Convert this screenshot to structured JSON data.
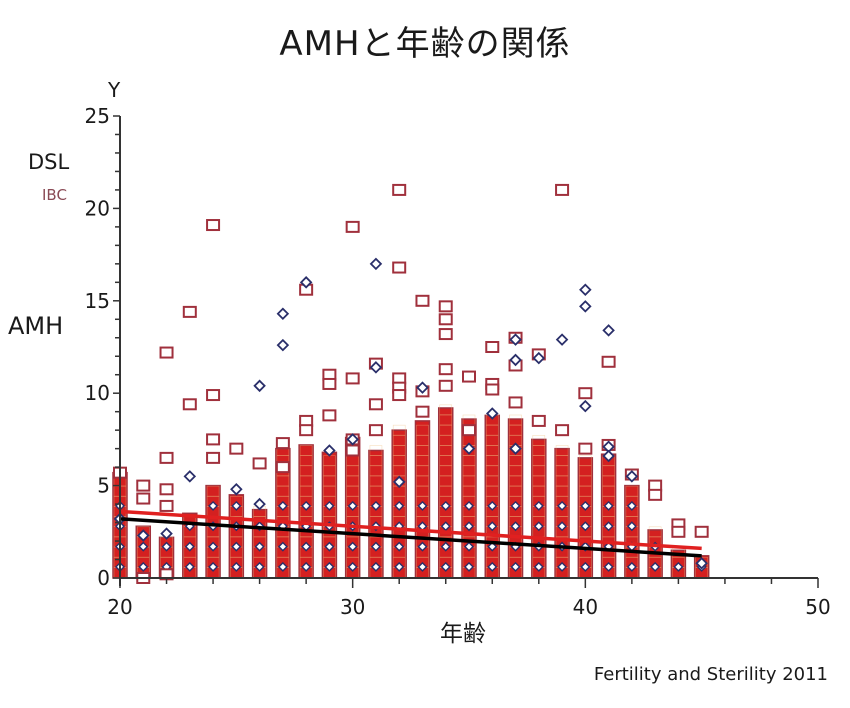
{
  "title": "AMHと年齢の関係",
  "y_axis_symbol": "Y",
  "legend": {
    "dsl": "DSL",
    "ibc": "IBC"
  },
  "ylabel": "AMH",
  "xlabel": "年齢",
  "source": "Fertility and Sterility 2011",
  "colors": {
    "ibc_marker": "#a0303c",
    "dsl_marker": "#2a2f6a",
    "ibc_fill": "#d42020",
    "dsl_line": "#000000",
    "ibc_line": "#e02020",
    "axis": "#333333"
  },
  "chart_data": {
    "type": "scatter",
    "title": "AMHと年齢の関係",
    "xlabel": "年齢",
    "ylabel": "AMH",
    "xlim": [
      20,
      50
    ],
    "ylim": [
      0,
      25
    ],
    "x_ticks": [
      20,
      30,
      40,
      50
    ],
    "y_ticks": [
      0,
      5,
      10,
      15,
      20,
      25
    ],
    "legend": [
      "DSL",
      "IBC"
    ],
    "legend_position": "upper-left",
    "grid": false,
    "series": [
      {
        "name": "IBC",
        "marker": "square",
        "points": [
          [
            20,
            5.7
          ],
          [
            21,
            5.0
          ],
          [
            21,
            4.3
          ],
          [
            22,
            12.2
          ],
          [
            22,
            6.5
          ],
          [
            22,
            4.8
          ],
          [
            22,
            3.9
          ],
          [
            22,
            0.2
          ],
          [
            21,
            0.0
          ],
          [
            23,
            9.4
          ],
          [
            23,
            14.4
          ],
          [
            24,
            19.1
          ],
          [
            24,
            9.9
          ],
          [
            24,
            7.5
          ],
          [
            24,
            6.5
          ],
          [
            25,
            7.0
          ],
          [
            26,
            6.2
          ],
          [
            27,
            7.3
          ],
          [
            27,
            6.0
          ],
          [
            28,
            8.5
          ],
          [
            28,
            8.0
          ],
          [
            28,
            15.6
          ],
          [
            29,
            11.0
          ],
          [
            29,
            10.5
          ],
          [
            29,
            8.8
          ],
          [
            30,
            19.0
          ],
          [
            30,
            10.8
          ],
          [
            30,
            7.5
          ],
          [
            30,
            6.9
          ],
          [
            31,
            11.6
          ],
          [
            31,
            9.4
          ],
          [
            31,
            8.0
          ],
          [
            32,
            21.0
          ],
          [
            32,
            16.8
          ],
          [
            32,
            10.8
          ],
          [
            32,
            10.3
          ],
          [
            32,
            9.9
          ],
          [
            33,
            15.0
          ],
          [
            33,
            10.1
          ],
          [
            33,
            9.0
          ],
          [
            34,
            14.7
          ],
          [
            34,
            14.0
          ],
          [
            34,
            13.2
          ],
          [
            34,
            11.3
          ],
          [
            34,
            10.4
          ],
          [
            35,
            10.9
          ],
          [
            35,
            8.0
          ],
          [
            36,
            12.5
          ],
          [
            36,
            10.5
          ],
          [
            36,
            10.2
          ],
          [
            37,
            13.0
          ],
          [
            37,
            11.5
          ],
          [
            37,
            9.5
          ],
          [
            38,
            12.1
          ],
          [
            38,
            8.5
          ],
          [
            39,
            21.0
          ],
          [
            39,
            8.0
          ],
          [
            40,
            10.0
          ],
          [
            40,
            7.0
          ],
          [
            41,
            11.7
          ],
          [
            41,
            7.2
          ],
          [
            42,
            5.6
          ],
          [
            43,
            5.0
          ],
          [
            43,
            4.5
          ],
          [
            44,
            2.9
          ],
          [
            44,
            2.5
          ],
          [
            45,
            2.5
          ]
        ]
      },
      {
        "name": "DSL",
        "marker": "diamond",
        "points": [
          [
            20,
            3.2
          ],
          [
            21,
            2.3
          ],
          [
            22,
            2.4
          ],
          [
            23,
            5.5
          ],
          [
            25,
            4.8
          ],
          [
            26,
            10.4
          ],
          [
            26,
            4.0
          ],
          [
            27,
            14.3
          ],
          [
            27,
            12.6
          ],
          [
            28,
            16.0
          ],
          [
            29,
            6.9
          ],
          [
            30,
            7.5
          ],
          [
            31,
            17.0
          ],
          [
            31,
            11.4
          ],
          [
            32,
            5.2
          ],
          [
            33,
            10.3
          ],
          [
            35,
            7.0
          ],
          [
            36,
            8.9
          ],
          [
            37,
            12.9
          ],
          [
            37,
            11.8
          ],
          [
            37,
            7.0
          ],
          [
            38,
            11.9
          ],
          [
            39,
            12.9
          ],
          [
            40,
            15.6
          ],
          [
            40,
            14.7
          ],
          [
            40,
            9.3
          ],
          [
            41,
            13.4
          ],
          [
            41,
            7.1
          ],
          [
            41,
            6.6
          ],
          [
            42,
            5.5
          ],
          [
            45,
            0.8
          ]
        ]
      }
    ],
    "regression_lines": [
      {
        "name": "DSL",
        "color": "#000000",
        "from": [
          20,
          3.2
        ],
        "to": [
          45,
          1.2
        ]
      },
      {
        "name": "IBC",
        "color": "#e02020",
        "from": [
          20,
          3.6
        ],
        "to": [
          45,
          1.6
        ]
      }
    ],
    "dense_columns_ages": [
      20,
      21,
      22,
      23,
      24,
      25,
      26,
      27,
      28,
      29,
      30,
      31,
      32,
      33,
      34,
      35,
      36,
      37,
      38,
      39,
      40,
      41,
      42,
      43,
      44,
      45
    ],
    "dense_column_top": [
      5.7,
      2.8,
      2.2,
      3.5,
      5.0,
      4.5,
      3.7,
      7.0,
      7.2,
      6.8,
      7.6,
      6.9,
      8.0,
      8.5,
      9.2,
      8.6,
      8.8,
      8.6,
      7.5,
      7.0,
      6.5,
      6.7,
      5.0,
      2.6,
      1.5,
      1.2
    ]
  }
}
